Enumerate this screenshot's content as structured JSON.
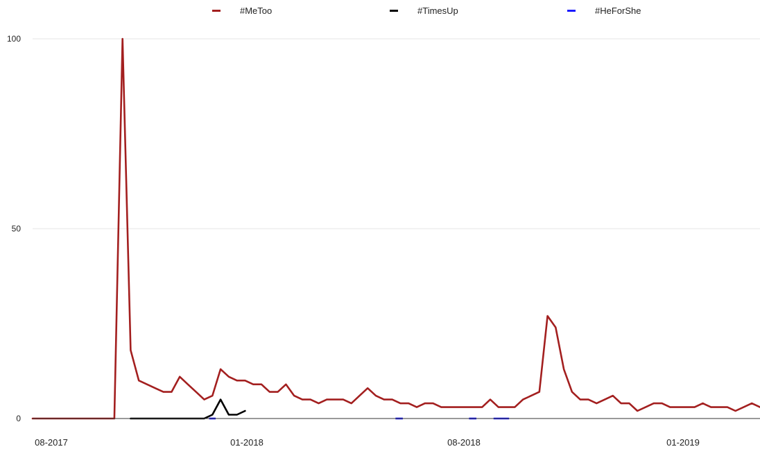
{
  "chart_data": {
    "type": "line",
    "title": "",
    "xlabel": "",
    "ylabel": "",
    "ylim": [
      0,
      100
    ],
    "y_ticks": [
      "0",
      "50",
      "100"
    ],
    "x_ticks": [
      "08-2017",
      "01-2018",
      "08-2018",
      "01-2019"
    ],
    "grid": true,
    "legend_position": "top",
    "colors": {
      "MeToo": "#a31f1f",
      "TimesUp": "#000000",
      "HeForShe": "#1a1aff",
      "grid": "#e4e4e4",
      "axis": "#333333"
    },
    "x_weeks": [
      0,
      1,
      2,
      3,
      4,
      5,
      6,
      7,
      8,
      9,
      10,
      11,
      12,
      13,
      14,
      15,
      16,
      17,
      18,
      19,
      20,
      21,
      22,
      23,
      24,
      25,
      26,
      27,
      28,
      29,
      30,
      31,
      32,
      33,
      34,
      35,
      36,
      37,
      38,
      39,
      40,
      41,
      42,
      43,
      44,
      45,
      46,
      47,
      48,
      49,
      50,
      51,
      52,
      53,
      54,
      55,
      56,
      57,
      58,
      59,
      60,
      61,
      62,
      63,
      64,
      65,
      66,
      67,
      68,
      69,
      70,
      71,
      72,
      73,
      74,
      75,
      76,
      77,
      78,
      79,
      80,
      81,
      82,
      83,
      84,
      85,
      86,
      87,
      88,
      89
    ],
    "series": [
      {
        "name": "#MeToo",
        "color": "#a31f1f",
        "values": [
          0,
          0,
          0,
          0,
          0,
          0,
          0,
          0,
          0,
          0,
          0,
          100,
          18,
          10,
          9,
          8,
          7,
          7,
          11,
          9,
          7,
          5,
          6,
          13,
          11,
          10,
          10,
          9,
          9,
          7,
          7,
          9,
          6,
          5,
          5,
          4,
          5,
          5,
          5,
          4,
          6,
          8,
          6,
          5,
          5,
          4,
          4,
          3,
          4,
          4,
          3,
          3,
          3,
          3,
          3,
          3,
          5,
          3,
          3,
          3,
          5,
          6,
          7,
          27,
          24,
          13,
          7,
          5,
          5,
          4,
          5,
          6,
          4,
          4,
          2,
          3,
          4,
          4,
          3,
          3,
          3,
          3,
          4,
          3,
          3,
          3,
          2,
          3,
          4,
          3
        ]
      },
      {
        "name": "#TimesUp",
        "color": "#000000",
        "values": [
          null,
          null,
          null,
          null,
          null,
          null,
          null,
          null,
          null,
          null,
          null,
          null,
          0,
          0,
          0,
          0,
          0,
          0,
          0,
          0,
          0,
          0,
          1,
          5,
          1,
          1,
          2,
          null,
          null,
          null,
          null,
          null,
          null,
          null,
          null,
          null,
          null,
          null,
          null,
          null,
          null,
          null,
          null,
          null,
          null,
          null,
          null,
          null,
          null,
          null,
          null,
          null,
          null,
          null,
          null,
          null,
          null,
          null,
          null,
          null,
          null,
          null,
          null,
          null,
          null,
          null,
          null,
          null,
          null,
          null,
          null,
          null,
          null,
          null,
          null,
          null,
          null,
          null,
          null,
          null,
          null,
          null,
          null,
          null,
          null,
          null,
          null,
          null,
          null,
          null
        ]
      },
      {
        "name": "#HeForShe",
        "segments": [
          [
            21.6,
            22.4
          ],
          [
            44.4,
            45.3
          ],
          [
            53.4,
            54.3
          ],
          [
            56.4,
            58.3
          ]
        ],
        "value": 0,
        "color": "#1a1aff"
      }
    ]
  }
}
